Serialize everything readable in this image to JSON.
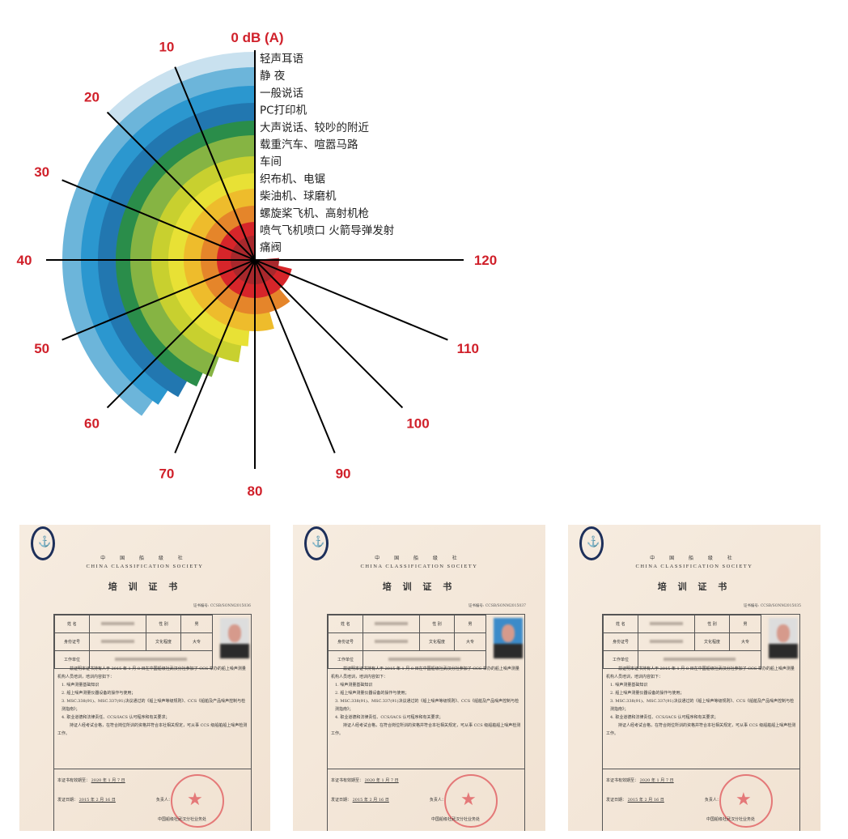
{
  "chart_data": {
    "type": "radial-sector",
    "axis_unit_label": "0 dB (A)",
    "spoke_labels": [
      "10",
      "20",
      "30",
      "40",
      "50",
      "60",
      "70",
      "80",
      "90",
      "100",
      "110",
      "120"
    ],
    "spoke_values": [
      10,
      20,
      30,
      40,
      50,
      60,
      70,
      80,
      90,
      100,
      110,
      120
    ],
    "rings": [
      {
        "label": "轻声耳语",
        "color": "#c9e1ef",
        "end_db": 20
      },
      {
        "label": "静 夜",
        "color": "#6cb5da",
        "end_db": 64
      },
      {
        "label": "一般说话",
        "color": "#2b97cf",
        "end_db": 65
      },
      {
        "label": "PC打印机",
        "color": "#2277b0",
        "end_db": 67
      },
      {
        "label": "大声说话、较吵的附近",
        "color": "#2a8d4a",
        "end_db": 69
      },
      {
        "label": "载重汽车、喧嚣马路",
        "color": "#86b443",
        "end_db": 71
      },
      {
        "label": "车间",
        "color": "#c8d02f",
        "end_db": 76
      },
      {
        "label": "织布机、电锯",
        "color": "#e8e135",
        "end_db": 78
      },
      {
        "label": "柴油机、球磨机",
        "color": "#eebc2c",
        "end_db": 87
      },
      {
        "label": "螺旋桨飞机、高射机枪",
        "color": "#e5852a",
        "end_db": 98
      },
      {
        "label": "喷气飞机喷口  火箭导弹发射",
        "color": "#d6252a",
        "end_db": 114
      },
      {
        "label": "痛阀",
        "color": "#a8282c",
        "end_db": 122
      }
    ],
    "label_color": "#d0202a"
  },
  "certificate": {
    "org_cn": "中 国 船 级 社",
    "org_en": "CHINA  CLASSIFICATION  SOCIETY",
    "title": "培 训 证 书",
    "name_label": "姓 名",
    "gender_label": "性 别",
    "gender_value": "男",
    "id_label": "身份证号",
    "edu_label": "文化程度",
    "edu_value": "大专",
    "employer_label": "工作单位",
    "body_intro": "兹证明本证书持有人于 2015 年 1 月 8 日在中国船级社武汉分社参加了 CCS 举办的船上噪声测量机构人员培训，培训内容如下：",
    "items": [
      "1. 噪声测量基础知识",
      "2. 船上噪声测量仪器设备的操作与使用；",
      "3. MSC.338(91)、MSC.337(91)决议通过的《船上噪声等级规则》、CCS《船舶及产品噪声控制与检测指南》；",
      "4. 职业道德和法律责任、CCS/IACS 认可程序和有关要求；"
    ],
    "body_outro": "持证人经考试合格，在符合岗位所训的资格并符合本社相关规定，可从事 CCS 级船舶船上噪声检测工作。",
    "valid_label": "本证书有效期至：",
    "valid_value": "2020 年 1 月 7 日",
    "issue_label": "发证日期：",
    "issue_value": "2015 年 2 月 16 日",
    "signer_label": "负责人：",
    "dept": "中国船级社武汉分社业务处",
    "stamp_color": "#e0555a"
  },
  "certificates": [
    {
      "cert_no": "证书编号: CCSB/SONM2015036"
    },
    {
      "cert_no": "证书编号: CCSB/SONM2015037"
    },
    {
      "cert_no": "证书编号: CCSB/SONM2015035"
    }
  ]
}
